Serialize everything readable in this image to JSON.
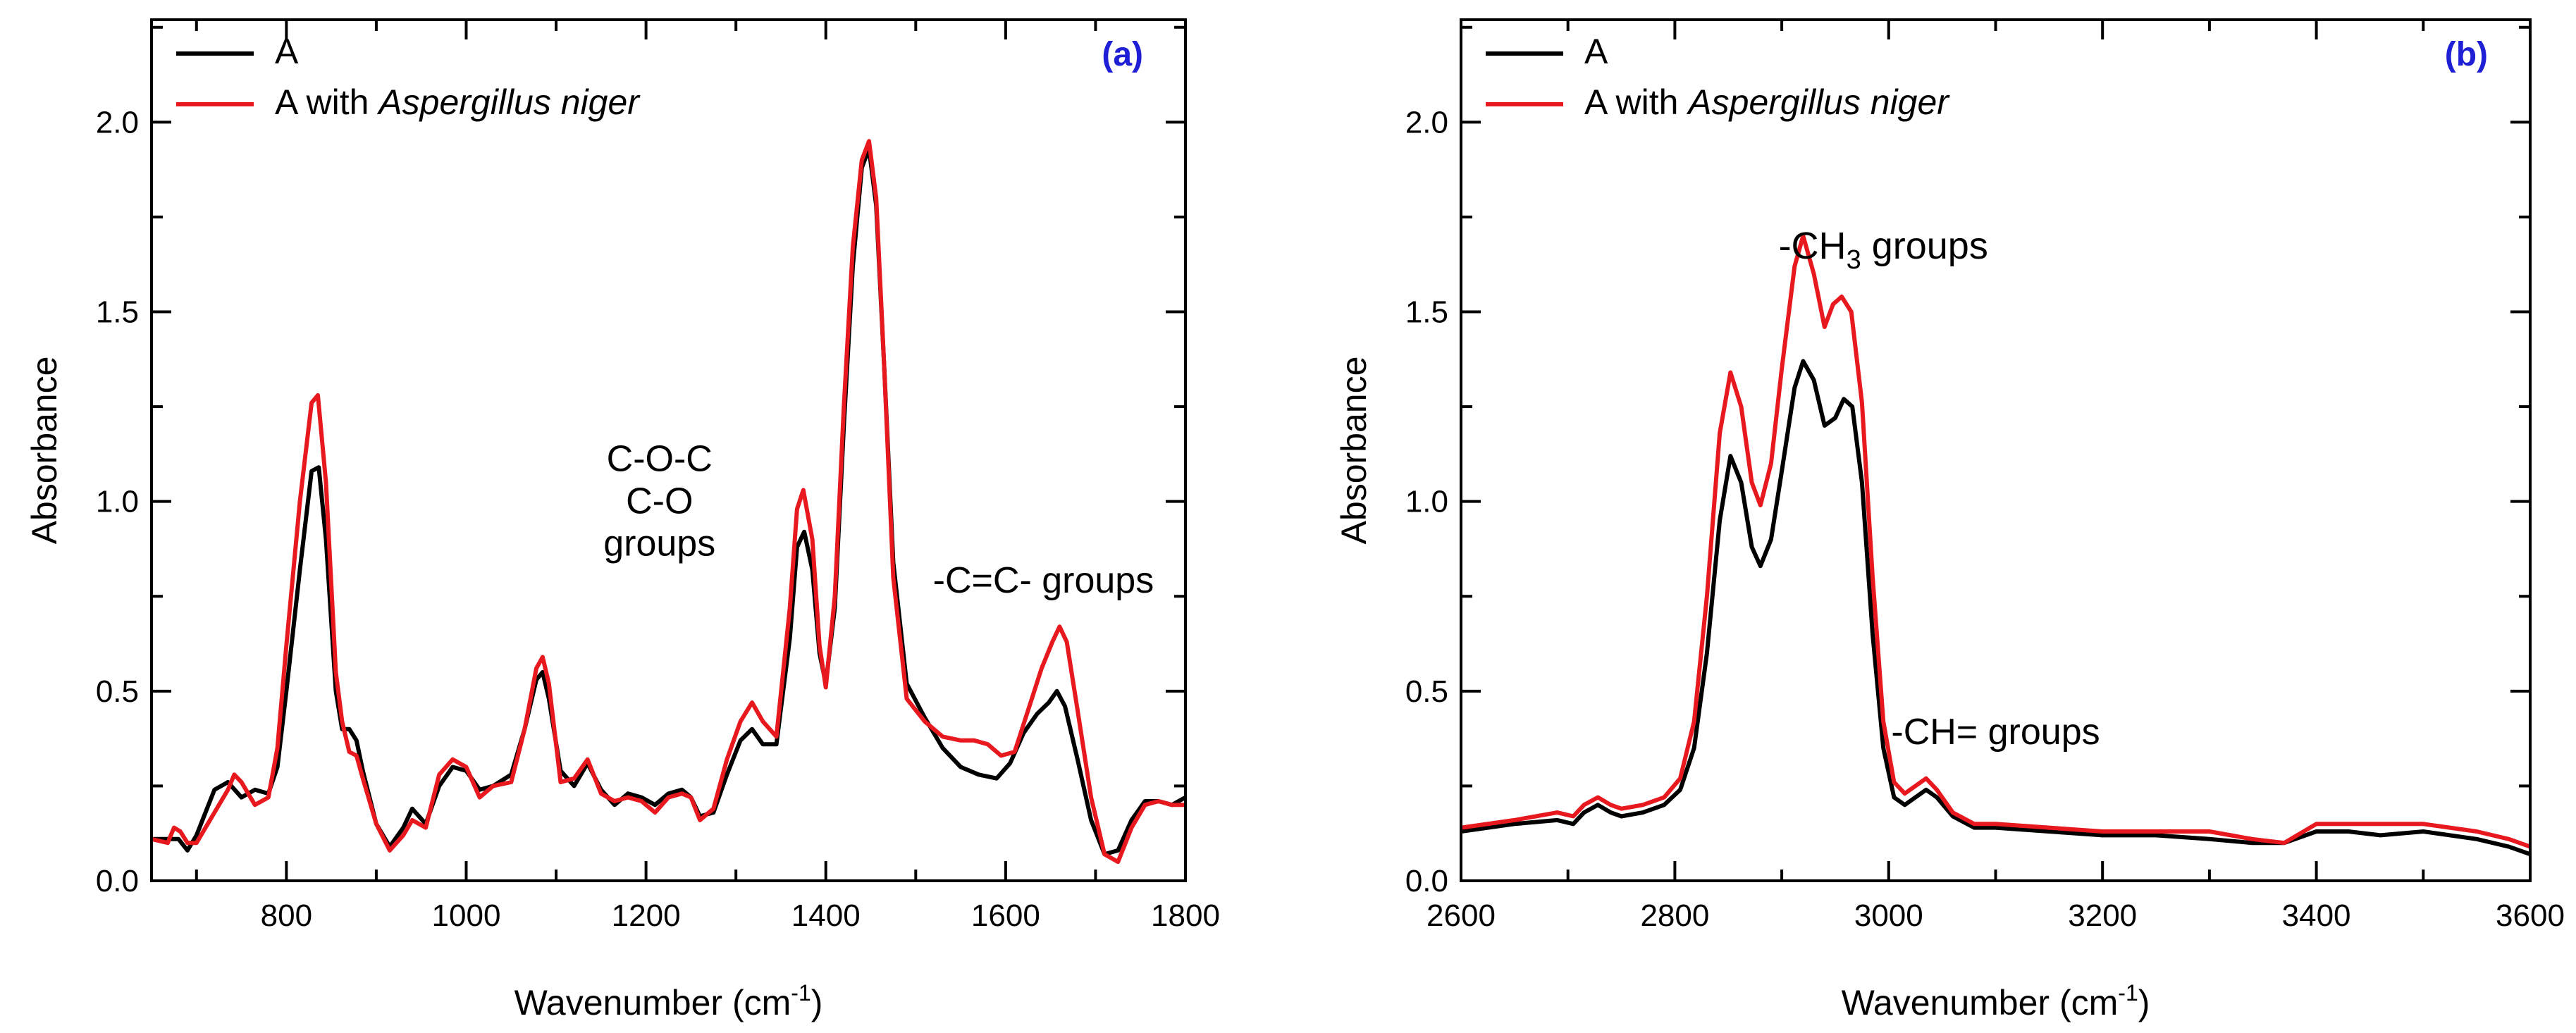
{
  "colors": {
    "series_a": "#000000",
    "series_b": "#e8191e",
    "panel_label": "#1f1fd6",
    "axes": "#000000"
  },
  "chart_data": [
    {
      "type": "line",
      "panel_label": "(a)",
      "title": "",
      "xlabel_text": "Wavenumber (cm",
      "xlabel_sup": "-1",
      "xlabel_close": ")",
      "ylabel": "Absorbance",
      "xlim": [
        650,
        1800
      ],
      "ylim": [
        0.0,
        2.27
      ],
      "xticks": [
        800,
        1000,
        1200,
        1400,
        1600,
        1800
      ],
      "xtick_labels": [
        "800",
        "1000",
        "1200",
        "1400",
        "1600",
        "1800"
      ],
      "yticks": [
        0.0,
        0.5,
        1.0,
        1.5,
        2.0
      ],
      "ytick_labels": [
        "0.0",
        "0.5",
        "1.0",
        "1.5",
        "2.0"
      ],
      "legend_position": "top-left",
      "legend": [
        {
          "prefix": "A",
          "italic": ""
        },
        {
          "prefix": "A with ",
          "italic": "Aspergillus niger"
        }
      ],
      "annotations": [
        {
          "id": "coc",
          "lines": [
            "C-O-C",
            "C-O",
            "groups"
          ],
          "x": 1215,
          "y": 1.08
        },
        {
          "id": "cc",
          "lines": [
            "-C=C- groups"
          ],
          "x": 1642,
          "y": 0.76
        }
      ],
      "series": [
        {
          "name": "A",
          "x": [
            650,
            680,
            690,
            700,
            720,
            735,
            750,
            765,
            780,
            790,
            800,
            815,
            828,
            836,
            844,
            855,
            862,
            870,
            878,
            885,
            900,
            915,
            930,
            940,
            955,
            970,
            985,
            1000,
            1015,
            1030,
            1050,
            1065,
            1078,
            1085,
            1092,
            1105,
            1120,
            1135,
            1150,
            1165,
            1180,
            1195,
            1210,
            1225,
            1240,
            1250,
            1260,
            1275,
            1290,
            1305,
            1318,
            1330,
            1345,
            1360,
            1368,
            1376,
            1385,
            1393,
            1400,
            1410,
            1420,
            1430,
            1440,
            1448,
            1456,
            1465,
            1475,
            1490,
            1510,
            1530,
            1550,
            1570,
            1590,
            1605,
            1620,
            1635,
            1648,
            1657,
            1666,
            1680,
            1695,
            1710,
            1725,
            1740,
            1755,
            1770,
            1785,
            1800
          ],
          "y": [
            0.11,
            0.11,
            0.08,
            0.12,
            0.24,
            0.26,
            0.22,
            0.24,
            0.23,
            0.3,
            0.5,
            0.82,
            1.08,
            1.09,
            0.9,
            0.5,
            0.4,
            0.4,
            0.37,
            0.29,
            0.15,
            0.09,
            0.14,
            0.19,
            0.15,
            0.25,
            0.3,
            0.29,
            0.24,
            0.25,
            0.28,
            0.4,
            0.53,
            0.55,
            0.48,
            0.29,
            0.25,
            0.31,
            0.24,
            0.2,
            0.23,
            0.22,
            0.2,
            0.23,
            0.24,
            0.22,
            0.17,
            0.18,
            0.28,
            0.37,
            0.4,
            0.36,
            0.36,
            0.64,
            0.88,
            0.92,
            0.82,
            0.6,
            0.52,
            0.72,
            1.2,
            1.62,
            1.88,
            1.93,
            1.78,
            1.35,
            0.84,
            0.52,
            0.43,
            0.35,
            0.3,
            0.28,
            0.27,
            0.31,
            0.39,
            0.44,
            0.47,
            0.5,
            0.46,
            0.32,
            0.16,
            0.07,
            0.08,
            0.16,
            0.21,
            0.21,
            0.2,
            0.22
          ]
        },
        {
          "name": "A with Aspergillus niger",
          "x": [
            650,
            668,
            675,
            682,
            690,
            700,
            720,
            735,
            742,
            750,
            765,
            780,
            790,
            800,
            815,
            828,
            835,
            844,
            855,
            862,
            870,
            878,
            885,
            900,
            915,
            930,
            940,
            955,
            970,
            985,
            1000,
            1015,
            1030,
            1050,
            1065,
            1078,
            1085,
            1092,
            1105,
            1120,
            1135,
            1150,
            1165,
            1180,
            1195,
            1210,
            1225,
            1240,
            1250,
            1260,
            1275,
            1290,
            1305,
            1318,
            1330,
            1345,
            1360,
            1368,
            1375,
            1385,
            1393,
            1400,
            1410,
            1420,
            1430,
            1440,
            1448,
            1456,
            1465,
            1475,
            1490,
            1510,
            1530,
            1550,
            1565,
            1580,
            1595,
            1610,
            1625,
            1640,
            1652,
            1660,
            1668,
            1680,
            1695,
            1710,
            1725,
            1740,
            1755,
            1770,
            1785,
            1800
          ],
          "y": [
            0.11,
            0.1,
            0.14,
            0.13,
            0.1,
            0.1,
            0.18,
            0.24,
            0.28,
            0.26,
            0.2,
            0.22,
            0.35,
            0.62,
            1.0,
            1.26,
            1.28,
            1.05,
            0.55,
            0.42,
            0.34,
            0.33,
            0.27,
            0.15,
            0.08,
            0.12,
            0.16,
            0.14,
            0.28,
            0.32,
            0.3,
            0.22,
            0.25,
            0.26,
            0.4,
            0.56,
            0.59,
            0.52,
            0.26,
            0.27,
            0.32,
            0.23,
            0.21,
            0.22,
            0.21,
            0.18,
            0.22,
            0.23,
            0.22,
            0.16,
            0.19,
            0.32,
            0.42,
            0.47,
            0.42,
            0.38,
            0.72,
            0.98,
            1.03,
            0.9,
            0.62,
            0.51,
            0.75,
            1.25,
            1.67,
            1.9,
            1.95,
            1.8,
            1.35,
            0.8,
            0.48,
            0.42,
            0.38,
            0.37,
            0.37,
            0.36,
            0.33,
            0.34,
            0.45,
            0.56,
            0.63,
            0.67,
            0.63,
            0.45,
            0.22,
            0.07,
            0.05,
            0.14,
            0.2,
            0.21,
            0.2,
            0.2
          ]
        }
      ]
    },
    {
      "type": "line",
      "panel_label": "(b)",
      "title": "",
      "xlabel_text": "Wavenumber (cm",
      "xlabel_sup": "-1",
      "xlabel_close": ")",
      "ylabel": "Absorbance",
      "xlim": [
        2600,
        3600
      ],
      "ylim": [
        0.0,
        2.27
      ],
      "xticks": [
        2600,
        2800,
        3000,
        3200,
        3400,
        3600
      ],
      "xtick_labels": [
        "2600",
        "2800",
        "3000",
        "3200",
        "3400",
        "3600"
      ],
      "yticks": [
        0.0,
        0.5,
        1.0,
        1.5,
        2.0
      ],
      "ytick_labels": [
        "0.0",
        "0.5",
        "1.0",
        "1.5",
        "2.0"
      ],
      "legend_position": "top-left",
      "legend": [
        {
          "prefix": "A",
          "italic": ""
        },
        {
          "prefix": "A with ",
          "italic": "Aspergillus niger"
        }
      ],
      "annotations": [
        {
          "id": "ch3",
          "prefix": "-CH",
          "sub": "3",
          "suffix": " groups",
          "x": 2995,
          "y": 1.64
        },
        {
          "id": "ch",
          "lines": [
            "-CH= groups"
          ],
          "x": 3100,
          "y": 0.36
        }
      ],
      "series": [
        {
          "name": "A",
          "x": [
            2600,
            2650,
            2690,
            2705,
            2715,
            2728,
            2740,
            2750,
            2770,
            2790,
            2805,
            2818,
            2830,
            2842,
            2852,
            2862,
            2872,
            2880,
            2890,
            2900,
            2912,
            2920,
            2930,
            2940,
            2950,
            2958,
            2966,
            2975,
            2985,
            2995,
            3005,
            3015,
            3025,
            3035,
            3045,
            3060,
            3080,
            3100,
            3150,
            3200,
            3250,
            3300,
            3340,
            3370,
            3400,
            3430,
            3460,
            3500,
            3550,
            3580,
            3600
          ],
          "y": [
            0.13,
            0.15,
            0.16,
            0.15,
            0.18,
            0.2,
            0.18,
            0.17,
            0.18,
            0.2,
            0.24,
            0.35,
            0.6,
            0.95,
            1.12,
            1.05,
            0.88,
            0.83,
            0.9,
            1.08,
            1.3,
            1.37,
            1.32,
            1.2,
            1.22,
            1.27,
            1.25,
            1.05,
            0.65,
            0.35,
            0.22,
            0.2,
            0.22,
            0.24,
            0.22,
            0.17,
            0.14,
            0.14,
            0.13,
            0.12,
            0.12,
            0.11,
            0.1,
            0.1,
            0.13,
            0.13,
            0.12,
            0.13,
            0.11,
            0.09,
            0.07
          ]
        },
        {
          "name": "A with Aspergillus niger",
          "x": [
            2600,
            2650,
            2690,
            2705,
            2715,
            2728,
            2740,
            2750,
            2770,
            2790,
            2805,
            2818,
            2830,
            2842,
            2852,
            2862,
            2872,
            2880,
            2890,
            2900,
            2912,
            2920,
            2930,
            2940,
            2948,
            2956,
            2965,
            2975,
            2985,
            2995,
            3005,
            3015,
            3025,
            3035,
            3045,
            3060,
            3080,
            3100,
            3150,
            3200,
            3250,
            3300,
            3340,
            3370,
            3400,
            3430,
            3460,
            3500,
            3550,
            3580,
            3600
          ],
          "y": [
            0.14,
            0.16,
            0.18,
            0.17,
            0.2,
            0.22,
            0.2,
            0.19,
            0.2,
            0.22,
            0.27,
            0.42,
            0.75,
            1.18,
            1.34,
            1.25,
            1.05,
            0.99,
            1.1,
            1.35,
            1.62,
            1.7,
            1.6,
            1.46,
            1.52,
            1.54,
            1.5,
            1.26,
            0.8,
            0.42,
            0.26,
            0.23,
            0.25,
            0.27,
            0.24,
            0.18,
            0.15,
            0.15,
            0.14,
            0.13,
            0.13,
            0.13,
            0.11,
            0.1,
            0.15,
            0.15,
            0.15,
            0.15,
            0.13,
            0.11,
            0.09
          ]
        }
      ]
    }
  ]
}
